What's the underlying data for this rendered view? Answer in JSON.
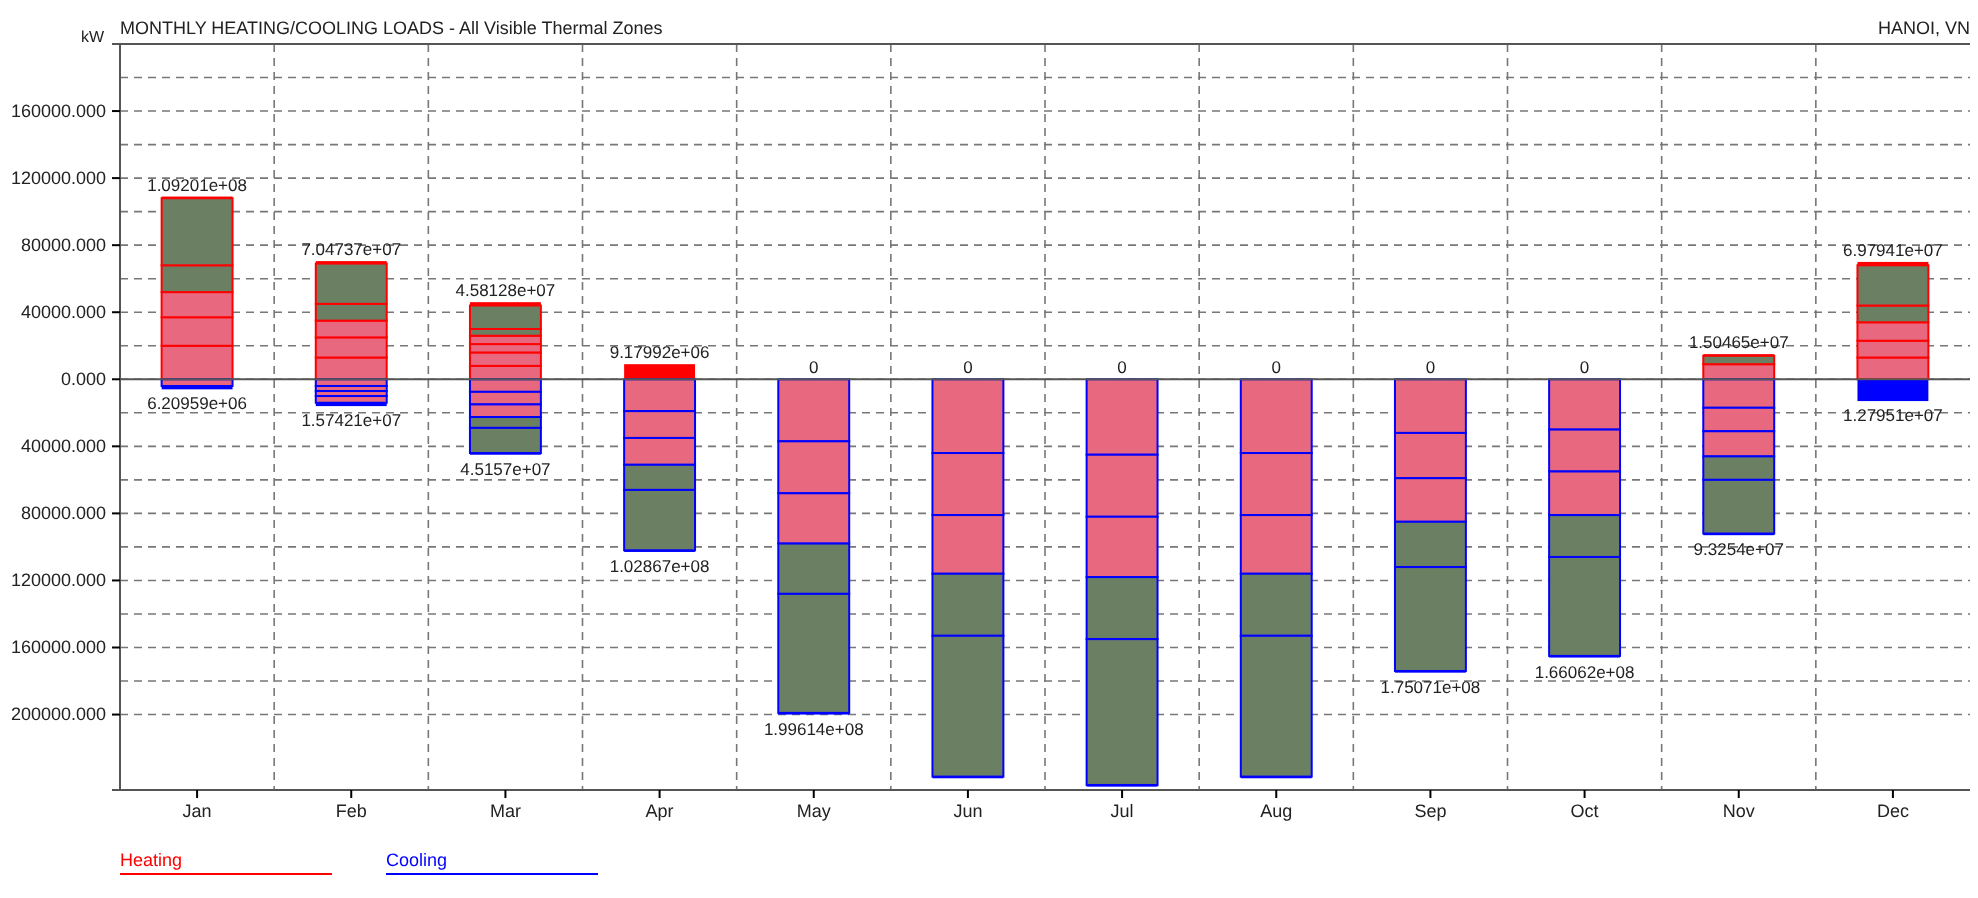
{
  "chart_data": {
    "type": "bar",
    "title": "MONTHLY HEATING/COOLING LOADS - All Visible Thermal Zones",
    "subtitle": "HANOI, VN",
    "ylabel": "kW",
    "categories": [
      "Jan",
      "Feb",
      "Mar",
      "Apr",
      "May",
      "Jun",
      "Jul",
      "Aug",
      "Sep",
      "Oct",
      "Nov",
      "Dec"
    ],
    "ylim": [
      -245000,
      200000
    ],
    "yticks": [
      {
        "value": 180000,
        "label": null
      },
      {
        "value": 160000,
        "label": "160000.000"
      },
      {
        "value": 140000,
        "label": null
      },
      {
        "value": 120000,
        "label": "120000.000"
      },
      {
        "value": 100000,
        "label": null
      },
      {
        "value": 80000,
        "label": "80000.000"
      },
      {
        "value": 60000,
        "label": null
      },
      {
        "value": 40000,
        "label": "40000.000"
      },
      {
        "value": 20000,
        "label": null
      },
      {
        "value": 0,
        "label": "0.000"
      },
      {
        "value": -20000,
        "label": null
      },
      {
        "value": -40000,
        "label": "40000.000"
      },
      {
        "value": -60000,
        "label": null
      },
      {
        "value": -80000,
        "label": "80000.000"
      },
      {
        "value": -100000,
        "label": null
      },
      {
        "value": -120000,
        "label": "120000.000"
      },
      {
        "value": -140000,
        "label": null
      },
      {
        "value": -160000,
        "label": "160000.000"
      },
      {
        "value": -180000,
        "label": null
      },
      {
        "value": -200000,
        "label": "200000.000"
      }
    ],
    "grid": true,
    "legend": "bottom left",
    "stacked": true,
    "annotations": [
      {
        "text": "1.09201e+08",
        "x": "Jan",
        "y": 109000
      },
      {
        "text": "7.04737e+07",
        "x": "Feb",
        "y": 70500
      },
      {
        "text": "4.58128e+07",
        "x": "Mar",
        "y": 46000
      },
      {
        "text": "9.17992e+06",
        "x": "Apr",
        "y": 9000
      },
      {
        "text": "0",
        "x": "May",
        "y": 0
      },
      {
        "text": "0",
        "x": "Jun",
        "y": 0
      },
      {
        "text": "0",
        "x": "Jul",
        "y": 0
      },
      {
        "text": "0",
        "x": "Aug",
        "y": 0
      },
      {
        "text": "0",
        "x": "Sep",
        "y": 0
      },
      {
        "text": "0",
        "x": "Oct",
        "y": 0
      },
      {
        "text": "1.50465e+07",
        "x": "Nov",
        "y": 15000
      },
      {
        "text": "6.97941e+07",
        "x": "Dec",
        "y": 70000
      },
      {
        "text": "6.20959e+06",
        "x": "Jan",
        "y": -6000
      },
      {
        "text": "1.57421e+07",
        "x": "Feb",
        "y": -16000
      },
      {
        "text": "4.5157e+07",
        "x": "Mar",
        "y": -45000
      },
      {
        "text": "1.02867e+08",
        "x": "Apr",
        "y": -103000
      },
      {
        "text": "1.99614e+08",
        "x": "May",
        "y": -200000
      },
      {
        "text": "1.75071e+08",
        "x": "Sep",
        "y": -175000
      },
      {
        "text": "1.66062e+08",
        "x": "Oct",
        "y": -166000
      },
      {
        "text": "9.3254e+07",
        "x": "Nov",
        "y": -93000
      },
      {
        "text": "1.27951e+07",
        "x": "Dec",
        "y": -13000
      }
    ],
    "series": [
      {
        "type": "bar",
        "values": [
          20000,
          13000,
          8000,
          null,
          null,
          null,
          null,
          null,
          null,
          null,
          9000,
          13000
        ],
        "colors": [
          "#e8697f",
          "#e8697f",
          "#e8697f",
          null,
          null,
          null,
          null,
          null,
          null,
          null,
          "#e8697f",
          "#e8697f"
        ]
      },
      {
        "type": "bar",
        "values": [
          17000,
          12000,
          8000,
          null,
          null,
          null,
          null,
          null,
          null,
          null,
          5000,
          10000
        ],
        "colors": [
          "#e8697f",
          "#e8697f",
          "#e8697f",
          null,
          null,
          null,
          null,
          null,
          null,
          null,
          "#6b7f63",
          "#e8697f"
        ]
      },
      {
        "type": "bar",
        "values": [
          15000,
          10000,
          5000,
          null,
          null,
          null,
          null,
          null,
          null,
          null,
          null,
          11000
        ],
        "colors": [
          "#e8697f",
          "#e8697f",
          "#e8697f",
          null,
          null,
          null,
          null,
          null,
          null,
          null,
          null,
          "#e8697f"
        ]
      },
      {
        "type": "bar",
        "values": [
          16000,
          10000,
          5000,
          null,
          null,
          null,
          null,
          null,
          null,
          null,
          null,
          10000
        ],
        "colors": [
          "#6b7f63",
          "#6b7f63",
          "#e8697f",
          null,
          null,
          null,
          null,
          null,
          null,
          null,
          null,
          "#6b7f63"
        ]
      },
      {
        "type": "bar",
        "values": [
          40000,
          24000,
          4000,
          null,
          null,
          null,
          null,
          null,
          null,
          null,
          null,
          24000
        ],
        "colors": [
          "#6b7f63",
          "#6b7f63",
          "#6b7f63",
          null,
          null,
          null,
          null,
          null,
          null,
          null,
          null,
          "#6b7f63"
        ]
      },
      {
        "type": "bar",
        "values": [
          null,
          null,
          14000,
          null,
          null,
          null,
          null,
          null,
          null,
          null,
          null,
          null
        ],
        "colors": [
          null,
          null,
          "#6b7f63",
          null,
          null,
          null,
          null,
          null,
          null,
          null,
          null,
          null
        ]
      },
      {
        "name": "Heating",
        "color": "#ff0000",
        "values": [
          1000,
          1500,
          2000,
          9000,
          0,
          0,
          0,
          0,
          0,
          0,
          1000,
          2000
        ]
      },
      {
        "type": "bar",
        "values": [
          -4000,
          -4000,
          -7500,
          -19000,
          -37000,
          -44000,
          -45000,
          -44000,
          -32000,
          -30000,
          -17000,
          null
        ],
        "colors": [
          "#e8697f",
          "#e8697f",
          "#e8697f",
          "#e8697f",
          "#e8697f",
          "#e8697f",
          "#e8697f",
          "#e8697f",
          "#e8697f",
          "#e8697f",
          "#e8697f",
          null
        ]
      },
      {
        "type": "bar",
        "values": [
          null,
          -3000,
          -7500,
          -16000,
          -31000,
          -37000,
          -37000,
          -37000,
          -27000,
          -25000,
          -14000,
          null
        ],
        "colors": [
          null,
          "#e8697f",
          "#e8697f",
          "#e8697f",
          "#e8697f",
          "#e8697f",
          "#e8697f",
          "#e8697f",
          "#e8697f",
          "#e8697f",
          "#e8697f",
          null
        ]
      },
      {
        "type": "bar",
        "values": [
          null,
          -3000,
          -7500,
          -16000,
          -30000,
          -35000,
          -36000,
          -35000,
          -26000,
          -26000,
          -15000,
          null
        ],
        "colors": [
          null,
          "#e8697f",
          "#e8697f",
          "#e8697f",
          "#e8697f",
          "#e8697f",
          "#e8697f",
          "#e8697f",
          "#e8697f",
          "#e8697f",
          "#e8697f",
          null
        ]
      },
      {
        "type": "bar",
        "values": [
          null,
          -4000,
          -6500,
          -15000,
          -30000,
          -37000,
          -37000,
          -37000,
          -27000,
          -25000,
          -14000,
          null
        ],
        "colors": [
          null,
          "#e8697f",
          "#6b7f63",
          "#6b7f63",
          "#6b7f63",
          "#6b7f63",
          "#6b7f63",
          "#6b7f63",
          "#6b7f63",
          "#6b7f63",
          "#6b7f63",
          null
        ]
      },
      {
        "type": "bar",
        "values": [
          null,
          null,
          -15000,
          -36000,
          -71000,
          -84000,
          -87000,
          -84000,
          -62000,
          -59000,
          -32000,
          null
        ],
        "colors": [
          null,
          null,
          "#6b7f63",
          "#6b7f63",
          "#6b7f63",
          "#6b7f63",
          "#6b7f63",
          "#6b7f63",
          "#6b7f63",
          "#6b7f63",
          "#6b7f63",
          null
        ]
      },
      {
        "name": "Cooling",
        "color": "#0000ff",
        "values": [
          -2000,
          -2000,
          -1000,
          -1000,
          -1000,
          -1000,
          -1000,
          -1000,
          -1000,
          -1000,
          -1000,
          -13000
        ]
      }
    ]
  }
}
